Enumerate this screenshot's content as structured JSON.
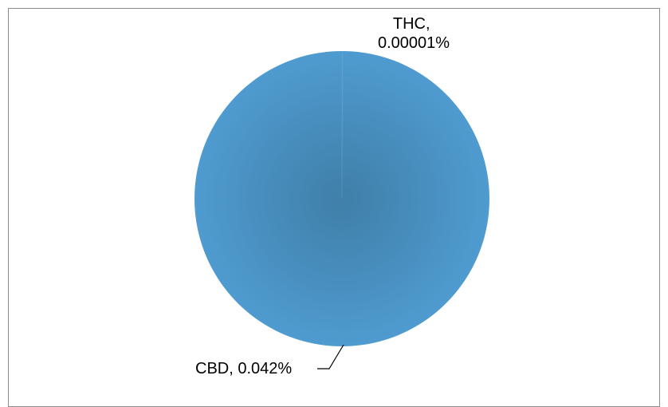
{
  "chart_data": {
    "type": "pie",
    "slices": [
      {
        "label_line1": "THC,",
        "label_line2": "0.00001%",
        "value": 1e-05,
        "color": "#4a90c2"
      },
      {
        "label_line1": "CBD, 0.042%",
        "label_line2": "",
        "value": 0.042,
        "color": "#4a90c2"
      }
    ],
    "legend": "none",
    "colors": {
      "pie_center": "#3f7fa8",
      "pie_edge": "#4f9bd0",
      "frame_border": "#8c8c8c",
      "leader_line": "#000000"
    }
  }
}
